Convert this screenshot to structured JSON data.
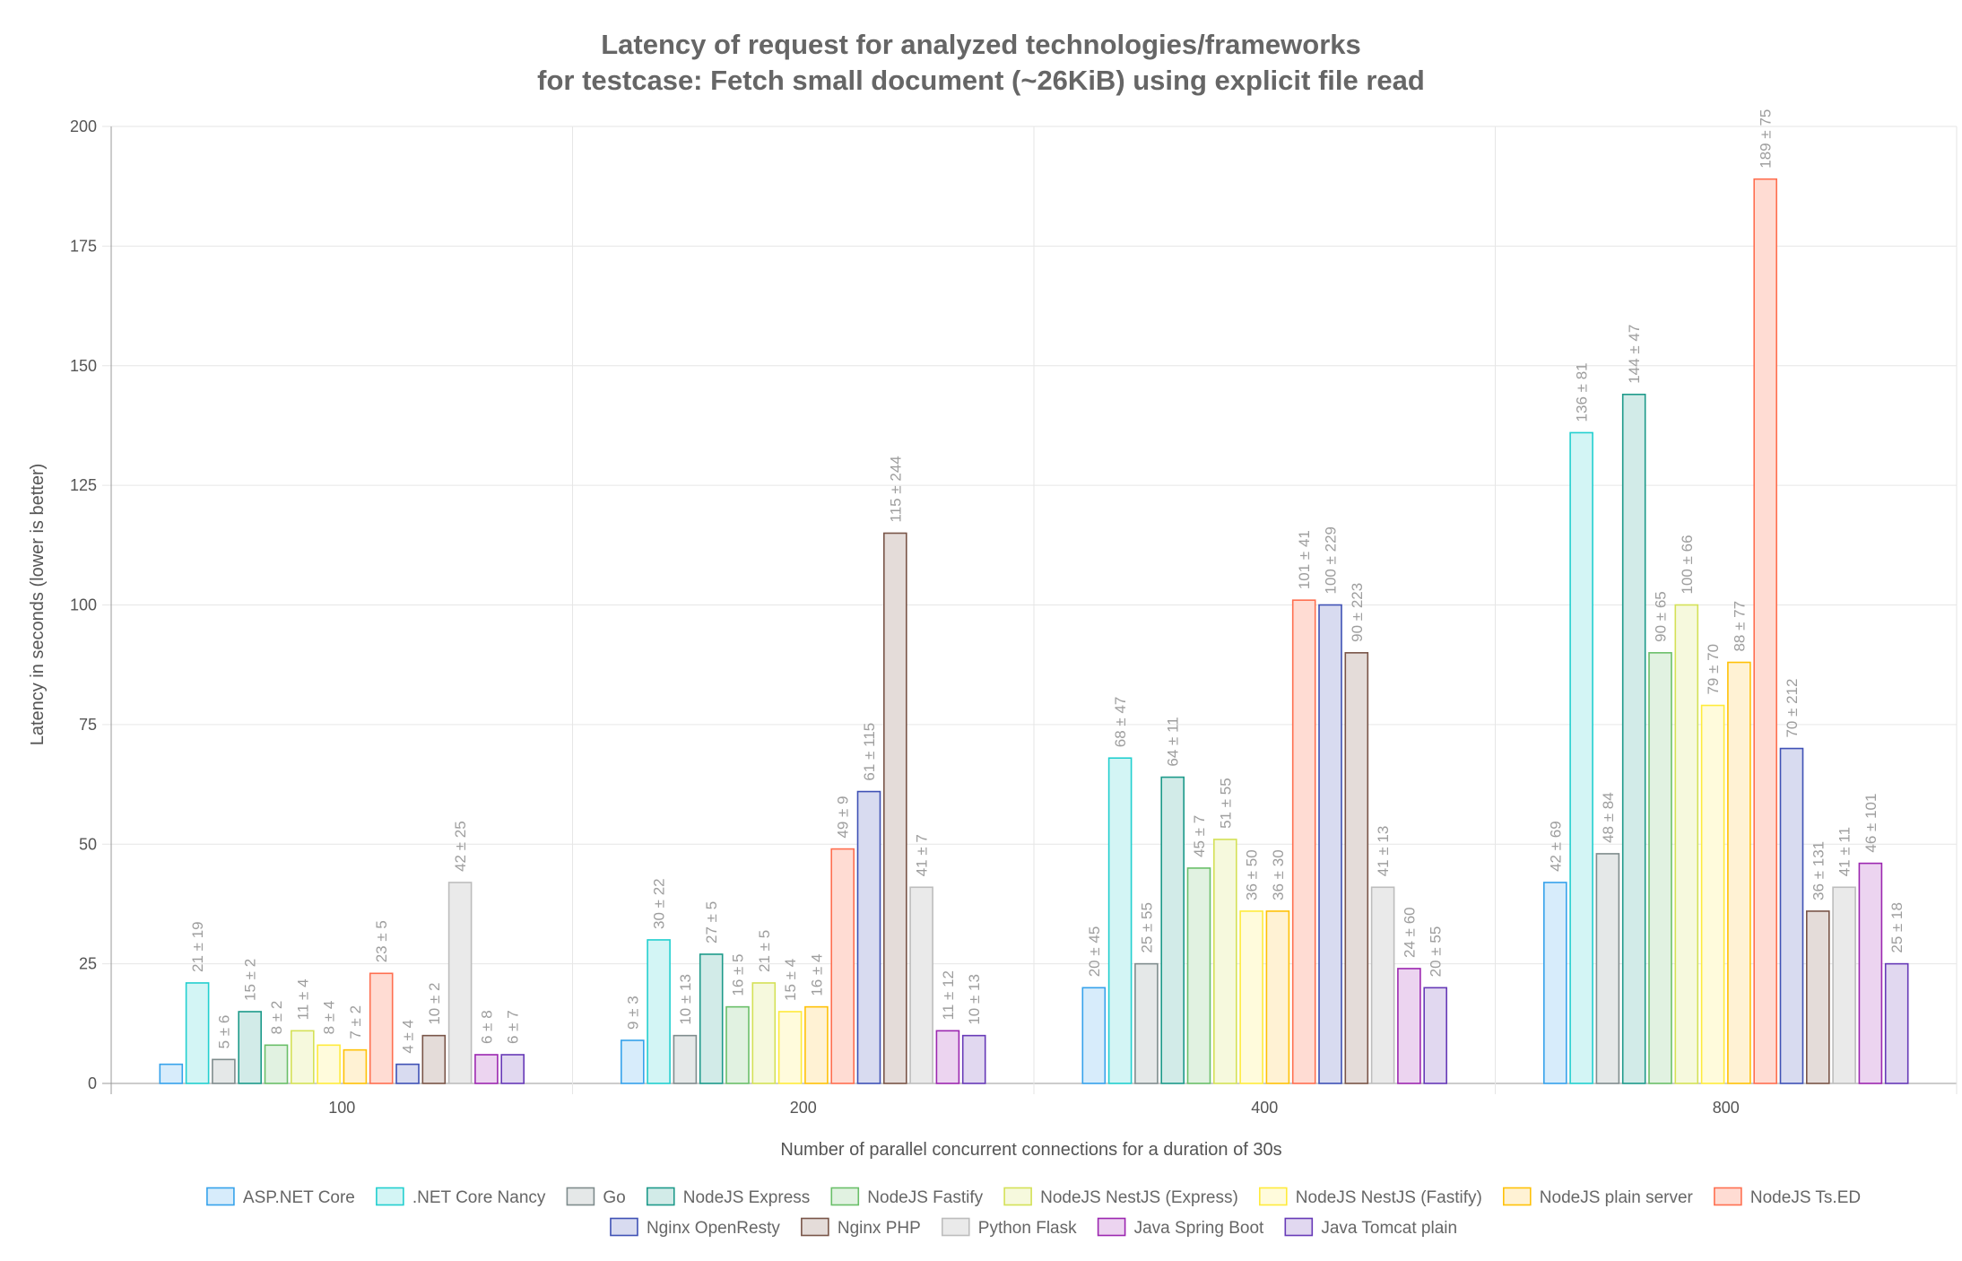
{
  "chart_data": {
    "type": "bar",
    "title": [
      "Latency of request for analyzed technologies/frameworks",
      "for testcase: Fetch small document (~26KiB) using explicit file read"
    ],
    "xlabel": "Number of parallel concurrent connections for a duration of 30s",
    "ylabel": "Latency in seconds (lower is better)",
    "ylim": [
      0,
      200
    ],
    "yticks": [
      0,
      25,
      50,
      75,
      100,
      125,
      150,
      175,
      200
    ],
    "categories": [
      "100",
      "200",
      "400",
      "800"
    ],
    "grid": true,
    "legend_position": "bottom",
    "series": [
      {
        "name": "ASP.NET Core",
        "border": "#36a2eb",
        "fill": "#d7ecfb",
        "values": [
          4,
          9,
          20,
          42
        ],
        "labels": [
          "",
          "9 ± 3",
          "20 ± 45",
          "42 ± 69"
        ]
      },
      {
        "name": ".NET Core Nancy",
        "border": "#22cfcf",
        "fill": "#d3f5f5",
        "values": [
          21,
          30,
          68,
          136
        ],
        "labels": [
          "21 ± 19",
          "30 ± 22",
          "68 ± 47",
          "136 ± 81"
        ]
      },
      {
        "name": "Go",
        "border": "#7f8c8d",
        "fill": "#e5e8e8",
        "values": [
          5,
          10,
          25,
          48
        ],
        "labels": [
          "5 ± 6",
          "10 ± 13",
          "25 ± 55",
          "48 ± 84"
        ]
      },
      {
        "name": "NodeJS Express",
        "border": "#1d9a8a",
        "fill": "#d2ebe8",
        "values": [
          15,
          27,
          64,
          144
        ],
        "labels": [
          "15 ± 2",
          "27 ± 5",
          "64 ± 11",
          "144 ± 47"
        ]
      },
      {
        "name": "NodeJS Fastify",
        "border": "#6abf69",
        "fill": "#e1f2e1",
        "values": [
          8,
          16,
          45,
          90
        ],
        "labels": [
          "8 ± 2",
          "16 ± 5",
          "45 ± 7",
          "90 ± 65"
        ]
      },
      {
        "name": "NodeJS NestJS (Express)",
        "border": "#d4e157",
        "fill": "#f6f9dd",
        "values": [
          11,
          21,
          51,
          100
        ],
        "labels": [
          "11 ± 4",
          "21 ± 5",
          "51 ± 55",
          "100 ± 66"
        ]
      },
      {
        "name": "NodeJS NestJS (Fastify)",
        "border": "#ffeb3b",
        "fill": "#fffbdc",
        "values": [
          8,
          15,
          36,
          79
        ],
        "labels": [
          "8 ± 4",
          "15 ± 4",
          "36 ± 50",
          "79 ± 70"
        ]
      },
      {
        "name": "NodeJS plain server",
        "border": "#ffc107",
        "fill": "#fff2d4",
        "values": [
          7,
          16,
          36,
          88
        ],
        "labels": [
          "7 ± 2",
          "16 ± 4",
          "36 ± 30",
          "88 ± 77"
        ]
      },
      {
        "name": "NodeJS Ts.ED",
        "border": "#ff6f50",
        "fill": "#ffdcd3",
        "values": [
          23,
          49,
          101,
          189
        ],
        "labels": [
          "23 ± 5",
          "49 ± 9",
          "101 ± 41",
          "189 ± 75"
        ]
      },
      {
        "name": "Nginx OpenResty",
        "border": "#3f51b5",
        "fill": "#d8dbf0",
        "values": [
          4,
          61,
          100,
          70
        ],
        "labels": [
          "4 ± 4",
          "61 ± 115",
          "100 ± 229",
          "70 ± 212"
        ]
      },
      {
        "name": "Nginx PHP",
        "border": "#795548",
        "fill": "#e4dcd9",
        "values": [
          10,
          115,
          90,
          36
        ],
        "labels": [
          "10 ± 2",
          "115 ± 244",
          "90 ± 223",
          "36 ± 131"
        ]
      },
      {
        "name": "Python Flask",
        "border": "#bdbdbd",
        "fill": "#eaeaea",
        "values": [
          42,
          41,
          41,
          41
        ],
        "labels": [
          "42 ± 25",
          "41 ± 7",
          "41 ± 13",
          "41 ± 11"
        ]
      },
      {
        "name": "Java Spring Boot",
        "border": "#9c27b0",
        "fill": "#ecd4f0",
        "values": [
          6,
          11,
          24,
          46
        ],
        "labels": [
          "6 ± 8",
          "11 ± 12",
          "24 ± 60",
          "46 ± 101"
        ]
      },
      {
        "name": "Java Tomcat plain",
        "border": "#673ab7",
        "fill": "#e1d8f0",
        "values": [
          6,
          10,
          20,
          25
        ],
        "labels": [
          "6 ± 7",
          "10 ± 13",
          "20 ± 55",
          "25 ± 18"
        ]
      }
    ]
  }
}
